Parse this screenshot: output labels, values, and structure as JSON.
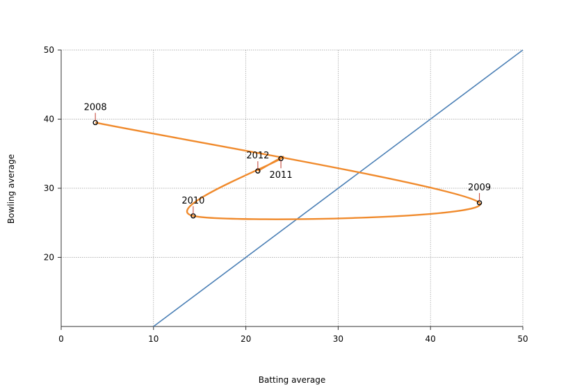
{
  "chart_data": {
    "type": "scatter",
    "title": "",
    "xlabel": "Batting average",
    "ylabel": "Bowling average",
    "xlim": [
      0,
      50
    ],
    "ylim": [
      10,
      50
    ],
    "xticks": [
      0,
      10,
      20,
      30,
      40,
      50
    ],
    "yticks": [
      20,
      30,
      40,
      50
    ],
    "grid": true,
    "colors": {
      "trajectory": "#f08a2c",
      "reference": "#4a7fb5",
      "marker": "#000000",
      "leader": "#c0392b",
      "grid": "#999999"
    },
    "series": [
      {
        "type": "line",
        "points": [
          {
            "label": "2008",
            "x": 3.7,
            "y": 39.5
          },
          {
            "label": "2009",
            "x": 45.3,
            "y": 27.9
          },
          {
            "label": "2010",
            "x": 14.3,
            "y": 26.0
          },
          {
            "label": "2011",
            "x": 23.8,
            "y": 34.3
          },
          {
            "label": "2012",
            "x": 21.3,
            "y": 32.5
          }
        ]
      },
      {
        "type": "line",
        "points": [
          {
            "x": 10,
            "y": 10
          },
          {
            "x": 50,
            "y": 50
          }
        ]
      }
    ]
  }
}
